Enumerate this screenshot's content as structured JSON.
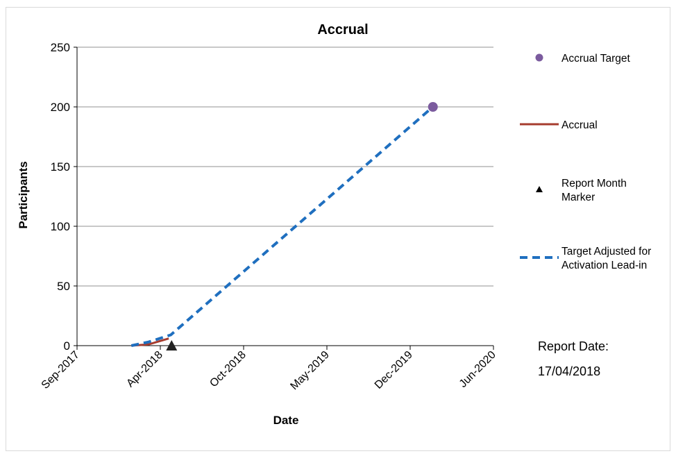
{
  "colors": {
    "accrual": "#a63c2e",
    "target_adjusted": "#1f6fbf",
    "accrual_target_marker": "#7b5b9e",
    "report_marker": "#222222",
    "gridline": "#a6a6a6"
  },
  "chart_data": {
    "type": "line",
    "title": "Accrual",
    "xlabel": "Date",
    "ylabel": "Participants",
    "x_axis_type": "date",
    "xlim": [
      "2017-09-01",
      "2020-06-01"
    ],
    "ylim": [
      0,
      250
    ],
    "x_ticks": [
      "Sep-2017",
      "Apr-2018",
      "Oct-2018",
      "May-2019",
      "Dec-2019",
      "Jun-2020"
    ],
    "y_ticks": [
      "0",
      "50",
      "100",
      "150",
      "200",
      "250"
    ],
    "grid": "horizontal",
    "legend_position": "right",
    "series": [
      {
        "name": "Accrual Target",
        "kind": "marker",
        "marker": "circle",
        "points": [
          {
            "x": "2020-01-07",
            "y": 200
          }
        ]
      },
      {
        "name": "Accrual",
        "kind": "line",
        "style": "solid",
        "points": [
          {
            "x": "2018-01-10",
            "y": 0
          },
          {
            "x": "2018-02-20",
            "y": 1
          },
          {
            "x": "2018-04-10",
            "y": 6
          }
        ]
      },
      {
        "name": "Report Month Marker",
        "kind": "marker",
        "marker": "triangle",
        "points": [
          {
            "x": "2018-04-17",
            "y": 0
          }
        ]
      },
      {
        "name": "Target Adjusted for Activation Lead-in",
        "kind": "line",
        "style": "dashed",
        "points": [
          {
            "x": "2018-01-10",
            "y": 0
          },
          {
            "x": "2018-02-20",
            "y": 3
          },
          {
            "x": "2018-04-15",
            "y": 9
          },
          {
            "x": "2020-01-07",
            "y": 200
          }
        ]
      }
    ]
  },
  "legend": [
    {
      "label": "Accrual Target",
      "marker": "circle"
    },
    {
      "label": "Accrual",
      "marker": "solid-line"
    },
    {
      "label": "Report Month Marker",
      "marker": "triangle"
    },
    {
      "label": "Target Adjusted for Activation Lead-in",
      "marker": "dashed-line"
    }
  ],
  "report": {
    "label": "Report Date:",
    "date": "17/04/2018"
  }
}
